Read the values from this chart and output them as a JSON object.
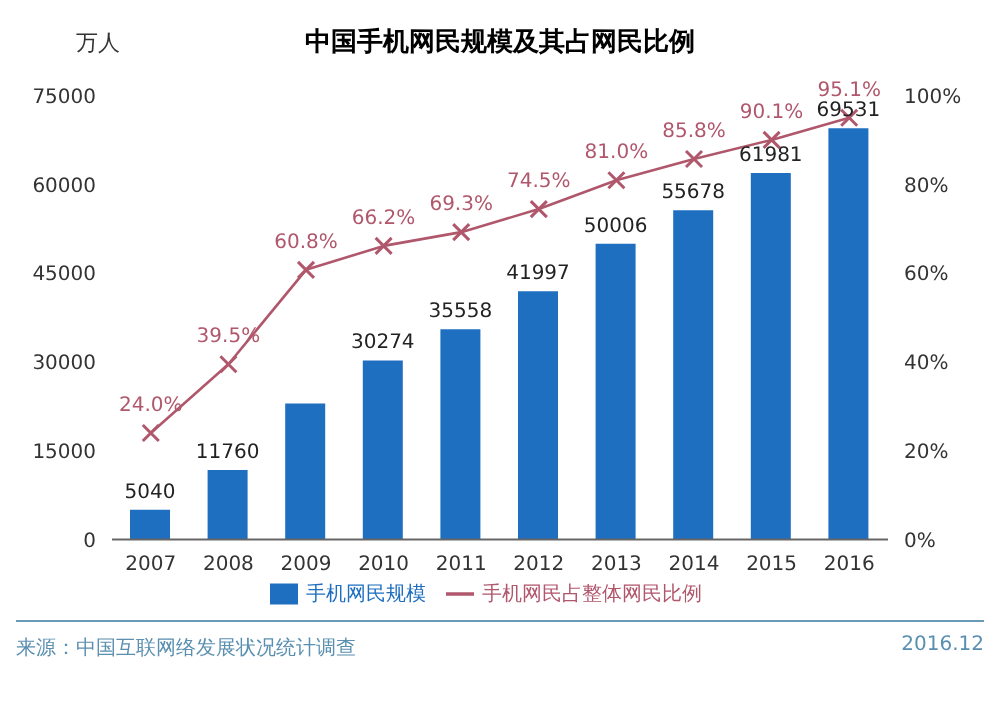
{
  "chart_data": {
    "type": "bar",
    "title": "中国手机网民规模及其占网民比例",
    "ylabel": "万人",
    "categories": [
      "2007",
      "2008",
      "2009",
      "2010",
      "2011",
      "2012",
      "2013",
      "2014",
      "2015",
      "2016"
    ],
    "series": [
      {
        "name": "手机网民规模",
        "color": "#1f6fc0",
        "values": [
          5040,
          11760,
          23000,
          30274,
          35558,
          41997,
          50006,
          55678,
          61981,
          69531
        ],
        "value_labels": [
          "5040",
          "11760",
          null,
          "30274",
          "35558",
          "41997",
          "50006",
          "55678",
          "61981",
          "69531"
        ]
      },
      {
        "name": "手机网民占整体网民比例",
        "type": "line",
        "axis": "y2",
        "color": "#b0576c",
        "marker": "cross",
        "values": [
          24.0,
          39.5,
          60.8,
          66.2,
          69.3,
          74.5,
          81.0,
          85.8,
          90.1,
          95.1
        ],
        "value_labels": [
          "24.0%",
          "39.5%",
          "60.8%",
          "66.2%",
          "69.3%",
          "74.5%",
          "81.0%",
          "85.8%",
          "90.1%",
          "95.1%"
        ]
      }
    ],
    "ylim": [
      0,
      75000
    ],
    "yticks": [
      0,
      15000,
      30000,
      45000,
      60000,
      75000
    ],
    "y2lim": [
      0,
      100
    ],
    "y2ticks": [
      {
        "value": 0,
        "label": "0%"
      },
      {
        "value": 20,
        "label": "20%"
      },
      {
        "value": 40,
        "label": "40%"
      },
      {
        "value": 60,
        "label": "60%"
      },
      {
        "value": 80,
        "label": "80%"
      },
      {
        "value": 100,
        "label": "100%"
      }
    ],
    "legend": "bottom",
    "grid": false,
    "annotations": [
      "来源：中国互联网络发展状况统计调查",
      "2016.12"
    ]
  }
}
